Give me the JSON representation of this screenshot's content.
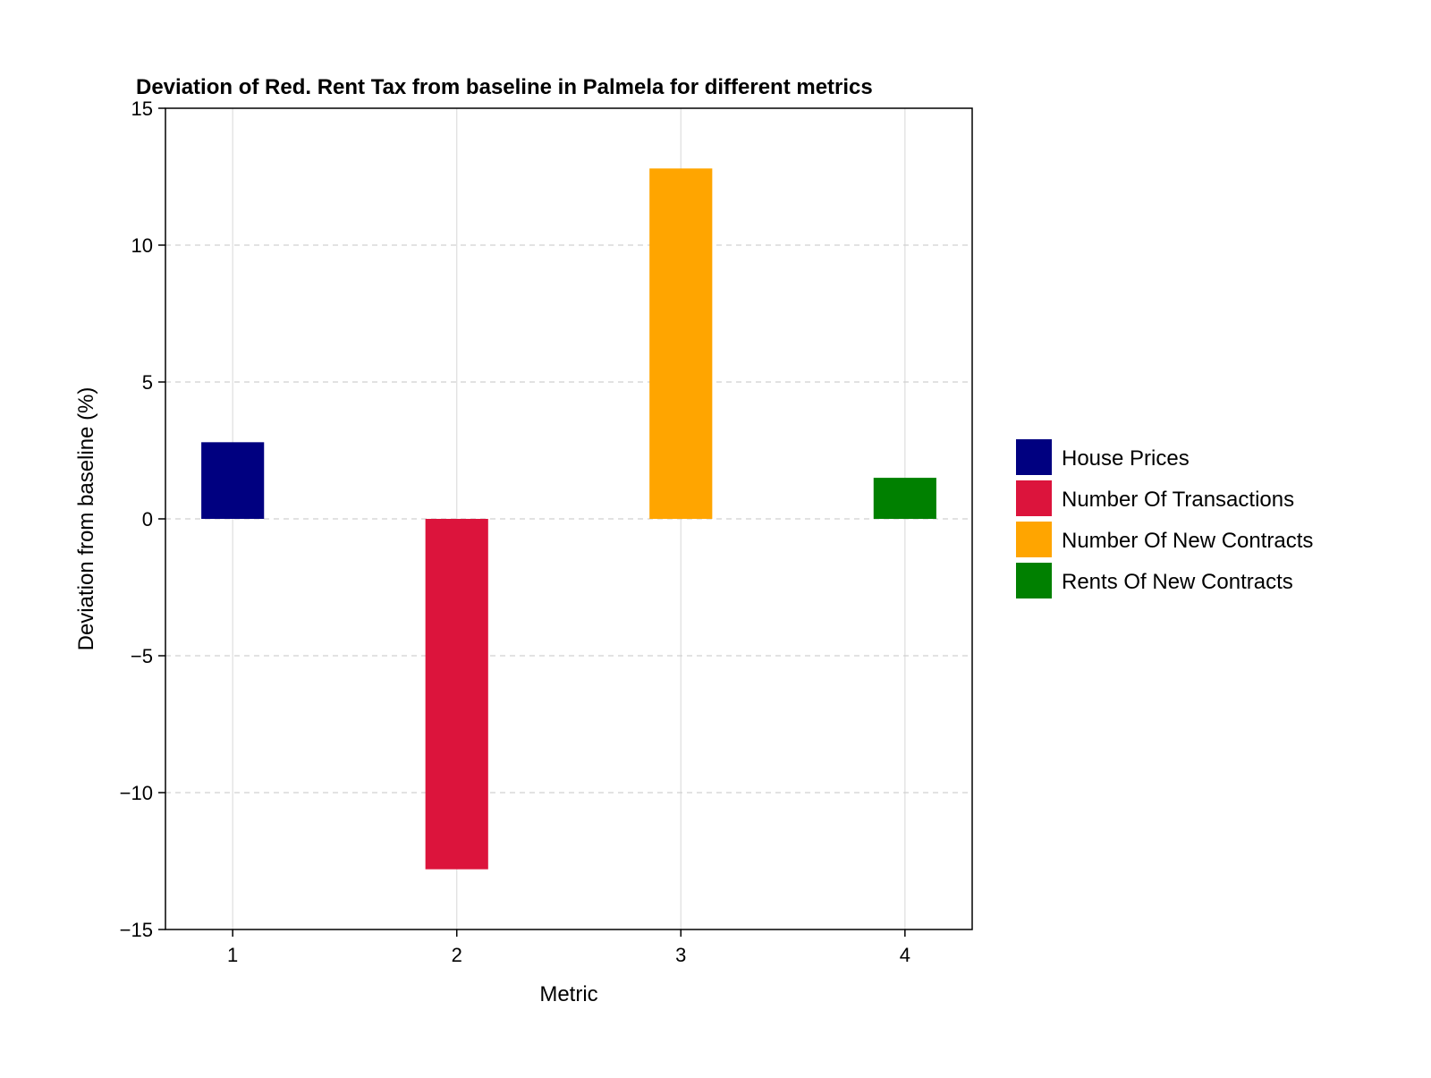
{
  "chart_data": {
    "type": "bar",
    "title": "Deviation of Red. Rent Tax from baseline in Palmela for different metrics",
    "xlabel": "Metric",
    "ylabel": "Deviation from baseline (%)",
    "categories": [
      "1",
      "2",
      "3",
      "4"
    ],
    "x": [
      1,
      2,
      3,
      4
    ],
    "ylim": [
      -15,
      15
    ],
    "xlim": [
      0.7,
      4.3
    ],
    "yticks": [
      -15,
      -10,
      -5,
      0,
      5,
      10,
      15
    ],
    "ytick_labels": [
      "−15",
      "−10",
      "−5",
      "0",
      "5",
      "10",
      "15"
    ],
    "series": [
      {
        "name": "House Prices",
        "x": 1,
        "value": 2.8,
        "color": "#000080"
      },
      {
        "name": "Number Of Transactions",
        "x": 2,
        "value": -12.8,
        "color": "#dc143c"
      },
      {
        "name": "Number Of New Contracts",
        "x": 3,
        "value": 12.8,
        "color": "#ffa500"
      },
      {
        "name": "Rents Of New Contracts",
        "x": 4,
        "value": 1.5,
        "color": "#008000"
      }
    ],
    "grid": true,
    "legend": "right"
  }
}
